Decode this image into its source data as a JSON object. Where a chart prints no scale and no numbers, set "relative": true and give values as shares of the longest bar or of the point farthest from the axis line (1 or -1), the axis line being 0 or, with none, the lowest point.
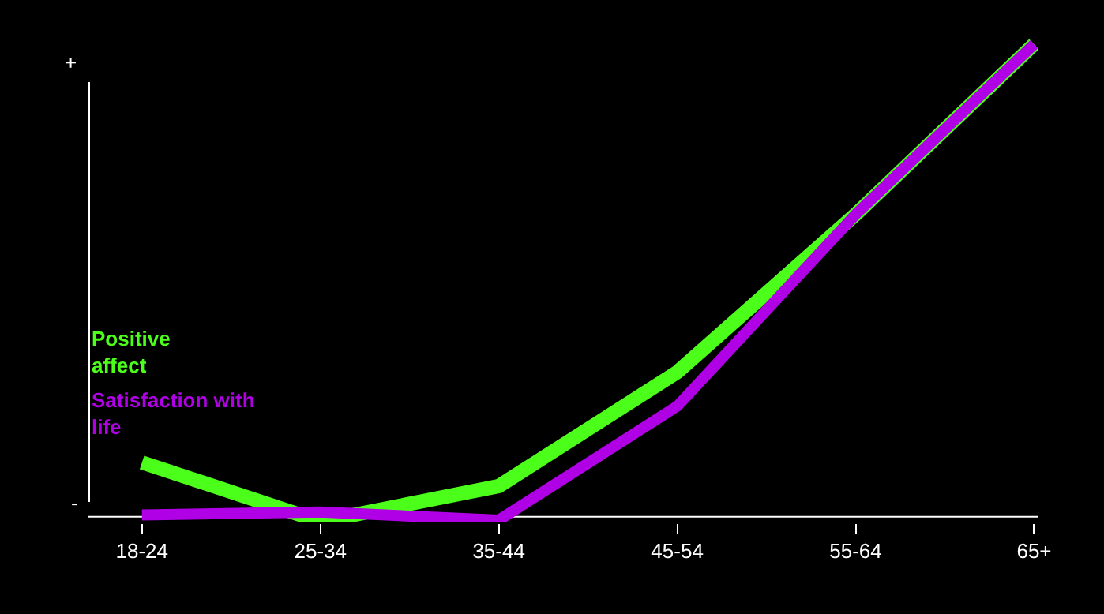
{
  "chart_data": {
    "type": "line",
    "relative": true,
    "categories": [
      "18-24",
      "25-34",
      "35-44",
      "45-54",
      "55-64",
      "65+"
    ],
    "series": [
      {
        "name": "Positive affect",
        "color": "#4cff1a",
        "values": [
          0.115,
          -0.01,
          0.065,
          0.306,
          0.64,
          1
        ]
      },
      {
        "name": "Satisfaction with life",
        "color": "#b000e6",
        "values": [
          0.004,
          0.01,
          -0.007,
          0.234,
          0.64,
          1
        ]
      }
    ],
    "annotations": [
      "+",
      "-"
    ],
    "legend": false,
    "grid": false,
    "marker": "none",
    "line_style": "solid"
  }
}
